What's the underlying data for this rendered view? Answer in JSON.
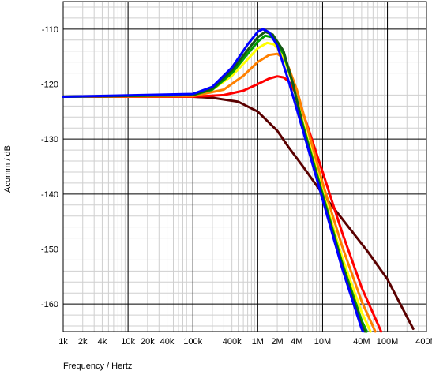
{
  "chart_data": {
    "type": "line",
    "title": "",
    "xlabel": "Frequency / Hertz",
    "ylabel": "Acomm / dB",
    "x_scale": "log",
    "xlim": [
      1000,
      400000000
    ],
    "ylim": [
      -165,
      -105
    ],
    "grid": true,
    "legend": "none",
    "x_ticks": [
      {
        "value": 1000,
        "label": "1k"
      },
      {
        "value": 2000,
        "label": "2k"
      },
      {
        "value": 4000,
        "label": "4k"
      },
      {
        "value": 10000,
        "label": "10k"
      },
      {
        "value": 20000,
        "label": "20k"
      },
      {
        "value": 40000,
        "label": "40k"
      },
      {
        "value": 100000,
        "label": "100k"
      },
      {
        "value": 400000,
        "label": "400k"
      },
      {
        "value": 1000000,
        "label": "1M"
      },
      {
        "value": 2000000,
        "label": "2M"
      },
      {
        "value": 4000000,
        "label": "4M"
      },
      {
        "value": 10000000,
        "label": "10M"
      },
      {
        "value": 40000000,
        "label": "40M"
      },
      {
        "value": 100000000,
        "label": "100M"
      },
      {
        "value": 400000000,
        "label": "400M"
      }
    ],
    "y_ticks": [
      {
        "value": -110,
        "label": "-110"
      },
      {
        "value": -120,
        "label": "-120"
      },
      {
        "value": -130,
        "label": "-130"
      },
      {
        "value": -140,
        "label": "-140"
      },
      {
        "value": -150,
        "label": "-150"
      },
      {
        "value": -160,
        "label": "-160"
      }
    ],
    "series": [
      {
        "color": "#5a0000",
        "x": [
          1000,
          100000,
          200000,
          500000,
          1000000,
          2000000,
          3000000,
          5000000,
          10000000,
          20000000,
          50000000,
          100000000,
          150000000,
          250000000
        ],
        "values": [
          -122.3,
          -122.3,
          -122.5,
          -123.2,
          -125.0,
          -128.5,
          -131.5,
          -135.0,
          -140.0,
          -144.5,
          -150.5,
          -155.5,
          -159.5,
          -164.5
        ]
      },
      {
        "color": "#ff0000",
        "x": [
          1000,
          100000,
          300000,
          600000,
          1000000,
          1500000,
          2000000,
          2500000,
          3000000,
          4000000,
          6000000,
          10000000,
          20000000,
          40000000,
          80000000
        ],
        "values": [
          -122.3,
          -122.3,
          -122.0,
          -121.2,
          -120.0,
          -119.0,
          -118.6,
          -118.8,
          -119.5,
          -122.0,
          -128.0,
          -136.0,
          -147.0,
          -157.0,
          -165.0
        ]
      },
      {
        "color": "#ff8000",
        "x": [
          1000,
          100000,
          300000,
          600000,
          1000000,
          1500000,
          2000000,
          2500000,
          3000000,
          4000000,
          6000000,
          10000000,
          20000000,
          40000000,
          65000000
        ],
        "values": [
          -122.3,
          -122.2,
          -121.0,
          -118.5,
          -116.0,
          -114.7,
          -114.5,
          -115.3,
          -117.0,
          -121.0,
          -128.5,
          -138.0,
          -149.5,
          -159.5,
          -165.0
        ]
      },
      {
        "color": "#ffff00",
        "x": [
          1000,
          100000,
          200000,
          400000,
          700000,
          1000000,
          1400000,
          1800000,
          2500000,
          3500000,
          5000000,
          10000000,
          20000000,
          40000000,
          55000000
        ],
        "values": [
          -122.3,
          -122.0,
          -121.0,
          -118.5,
          -115.5,
          -113.5,
          -112.5,
          -112.8,
          -115.0,
          -120.0,
          -127.0,
          -139.5,
          -151.5,
          -161.5,
          -165.0
        ]
      },
      {
        "color": "#00a000",
        "x": [
          1000,
          100000,
          200000,
          400000,
          700000,
          1000000,
          1300000,
          1700000,
          2500000,
          3500000,
          5000000,
          10000000,
          20000000,
          40000000,
          48000000
        ],
        "values": [
          -122.3,
          -122.0,
          -121.0,
          -118.0,
          -114.5,
          -112.3,
          -111.2,
          -111.5,
          -114.5,
          -120.0,
          -127.5,
          -140.0,
          -152.5,
          -163.0,
          -165.0
        ]
      },
      {
        "color": "#145a14",
        "x": [
          1000,
          100000,
          200000,
          400000,
          700000,
          1000000,
          1300000,
          1700000,
          2500000,
          3500000,
          5000000,
          10000000,
          20000000,
          40000000,
          45000000
        ],
        "values": [
          -122.3,
          -122.0,
          -120.8,
          -117.5,
          -113.8,
          -111.5,
          -110.5,
          -111.0,
          -114.0,
          -120.0,
          -128.0,
          -140.5,
          -153.0,
          -163.8,
          -165.0
        ]
      },
      {
        "color": "#0000ff",
        "x": [
          1000,
          100000,
          200000,
          400000,
          700000,
          1000000,
          1200000,
          1500000,
          2000000,
          3000000,
          5000000,
          10000000,
          20000000,
          40000000,
          42000000
        ],
        "values": [
          -122.3,
          -121.8,
          -120.5,
          -117.0,
          -112.8,
          -110.5,
          -110.0,
          -110.6,
          -113.0,
          -119.5,
          -128.5,
          -141.0,
          -153.5,
          -164.5,
          -165.0
        ]
      }
    ]
  }
}
